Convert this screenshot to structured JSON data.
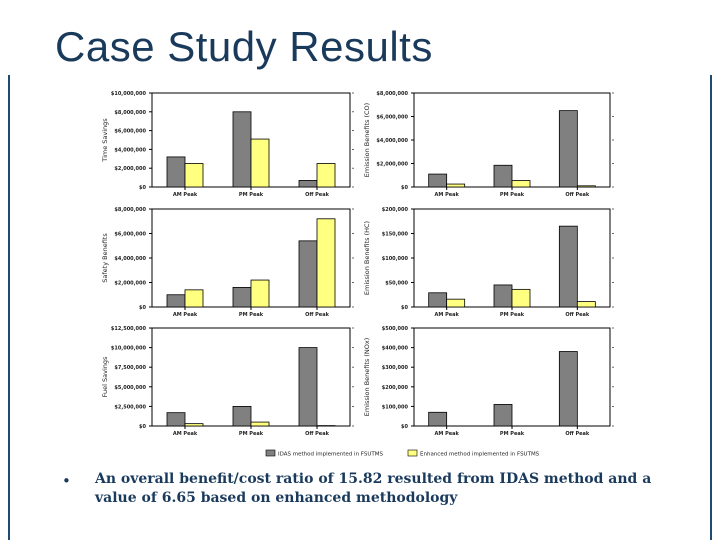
{
  "slide": {
    "title": "Case Study Results",
    "bullet": "•",
    "conclusion": "An overall benefit/cost ratio of 15.82 resulted from IDAS method and a value of 6.65 based on enhanced methodology"
  },
  "colors": {
    "title": "#1a3a5c",
    "series1": "#808080",
    "series2": "#ffff80",
    "frame": "#1f4a72"
  },
  "chart_data": [
    {
      "type": "bar",
      "ylabel": "Time Savings",
      "categories": [
        "AM Peak",
        "PM Peak",
        "Off Peak"
      ],
      "series": [
        {
          "name": "IDAS method implemented in FSUTMS",
          "values": [
            3200000,
            8000000,
            700000
          ]
        },
        {
          "name": "Enhanced method implemented in FSUTMS",
          "values": [
            2500000,
            5100000,
            2500000
          ]
        }
      ],
      "ylim": [
        0,
        10000000
      ],
      "ticks": [
        0,
        2000000,
        4000000,
        6000000,
        8000000,
        10000000
      ],
      "tick_labels": [
        "$0",
        "$2,000,000",
        "$4,000,000",
        "$6,000,000",
        "$8,000,000",
        "$10,000,000"
      ]
    },
    {
      "type": "bar",
      "ylabel": "Emission Benefits (CO)",
      "categories": [
        "AM Peak",
        "PM Peak",
        "Off Peak"
      ],
      "series": [
        {
          "name": "IDAS method implemented in FSUTMS",
          "values": [
            1100000,
            1850000,
            6500000
          ]
        },
        {
          "name": "Enhanced method implemented in FSUTMS",
          "values": [
            250000,
            550000,
            100000
          ]
        }
      ],
      "ylim": [
        0,
        8000000
      ],
      "ticks": [
        0,
        2000000,
        4000000,
        6000000,
        8000000
      ],
      "tick_labels": [
        "$0",
        "$2,000,000",
        "$4,000,000",
        "$6,000,000",
        "$8,000,000"
      ]
    },
    {
      "type": "bar",
      "ylabel": "Safety Benefits",
      "categories": [
        "AM Peak",
        "PM Peak",
        "Off Peak"
      ],
      "series": [
        {
          "name": "IDAS method implemented in FSUTMS",
          "values": [
            1000000,
            1600000,
            5400000
          ]
        },
        {
          "name": "Enhanced method implemented in FSUTMS",
          "values": [
            1400000,
            2200000,
            7200000
          ]
        }
      ],
      "ylim": [
        0,
        8000000
      ],
      "ticks": [
        0,
        2000000,
        4000000,
        6000000,
        8000000
      ],
      "tick_labels": [
        "$0",
        "$2,000,000",
        "$4,000,000",
        "$6,000,000",
        "$8,000,000"
      ]
    },
    {
      "type": "bar",
      "ylabel": "Emission Benefits (HC)",
      "categories": [
        "AM Peak",
        "PM Peak",
        "Off Peak"
      ],
      "series": [
        {
          "name": "IDAS method implemented in FSUTMS",
          "values": [
            29000,
            45000,
            165000
          ]
        },
        {
          "name": "Enhanced method implemented in FSUTMS",
          "values": [
            16000,
            36000,
            11000
          ]
        }
      ],
      "ylim": [
        0,
        200000
      ],
      "ticks": [
        0,
        50000,
        100000,
        150000,
        200000
      ],
      "tick_labels": [
        "$0",
        "$50,000",
        "$100,000",
        "$150,000",
        "$200,000"
      ]
    },
    {
      "type": "bar",
      "ylabel": "Fuel Savings",
      "categories": [
        "AM Peak",
        "PM Peak",
        "Off Peak"
      ],
      "series": [
        {
          "name": "IDAS method implemented in FSUTMS",
          "values": [
            1700000,
            2500000,
            10000000
          ]
        },
        {
          "name": "Enhanced method implemented in FSUTMS",
          "values": [
            300000,
            500000,
            50000
          ]
        }
      ],
      "ylim": [
        0,
        12500000
      ],
      "ticks": [
        0,
        2500000,
        5000000,
        7500000,
        10000000,
        12500000
      ],
      "tick_labels": [
        "$0",
        "$2,500,000",
        "$5,000,000",
        "$7,500,000",
        "$10,000,000",
        "$12,500,000"
      ]
    },
    {
      "type": "bar",
      "ylabel": "Emission Benefits (NOx)",
      "categories": [
        "AM Peak",
        "PM Peak",
        "Off Peak"
      ],
      "series": [
        {
          "name": "IDAS method implemented in FSUTMS",
          "values": [
            70000,
            110000,
            380000
          ]
        },
        {
          "name": "Enhanced method implemented in FSUTMS",
          "values": [
            0,
            0,
            0
          ]
        }
      ],
      "ylim": [
        0,
        500000
      ],
      "ticks": [
        0,
        100000,
        200000,
        300000,
        400000,
        500000
      ],
      "tick_labels": [
        "$0",
        "$100,000",
        "$200,000",
        "$300,000",
        "$400,000",
        "$500,000"
      ]
    }
  ],
  "legend": {
    "items": [
      "IDAS method implemented in FSUTMS",
      "Enhanced method implemented in FSUTMS"
    ]
  }
}
